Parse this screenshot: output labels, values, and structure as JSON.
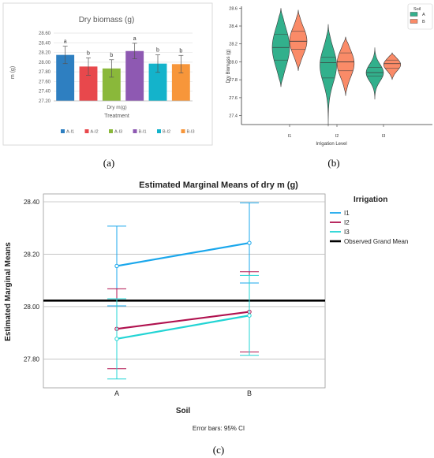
{
  "panels": [
    {
      "label": "(a)",
      "chart_data": {
        "type": "bar",
        "title": "Dry biomass (g)",
        "categories": [
          "A-I1",
          "A-I2",
          "A-I3",
          "B-I1",
          "B-I2",
          "B-I3"
        ],
        "values": [
          28.15,
          27.91,
          27.87,
          28.23,
          27.97,
          27.96
        ],
        "errors": [
          0.18,
          0.18,
          0.18,
          0.16,
          0.18,
          0.18
        ],
        "letters": [
          "a",
          "b",
          "b",
          "a",
          "b",
          "b"
        ],
        "colors": [
          "#2e7fc1",
          "#e8484c",
          "#8ab83a",
          "#8e59b2",
          "#14b3cb",
          "#f7963a"
        ],
        "ylabel": "m (g)",
        "xlabel_inner": "Dry m(g)",
        "xlabel": "Treatment",
        "ylim": [
          27.2,
          28.6
        ],
        "yticks": [
          "27.20",
          "27.40",
          "27.60",
          "27.80",
          "28.00",
          "28.20",
          "28.40",
          "28.60"
        ],
        "grid": true,
        "legend": "bottom"
      }
    },
    {
      "label": "(b)",
      "chart_data": {
        "type": "violin",
        "categories": [
          "I1",
          "I2",
          "I3"
        ],
        "xlabel": "Irrigation Level",
        "ylabel": "Dry Biomass (g)",
        "ylim": [
          27.3,
          28.62
        ],
        "yticks": [
          "27.4",
          "27.6",
          "27.8",
          "28.0",
          "28.2",
          "28.4",
          "28.6"
        ],
        "legend_title": "Soil",
        "series": [
          {
            "name": "A",
            "color": "#32b08c",
            "violins": [
              {
                "min": 27.72,
                "max": 28.6,
                "q1": 28.02,
                "median": 28.16,
                "q3": 28.31
              },
              {
                "min": 27.28,
                "max": 28.42,
                "q1": 27.82,
                "median": 27.99,
                "q3": 28.05
              },
              {
                "min": 27.58,
                "max": 28.16,
                "q1": 27.84,
                "median": 27.88,
                "q3": 27.94
              }
            ]
          },
          {
            "name": "B",
            "color": "#fa8b68",
            "violins": [
              {
                "min": 27.9,
                "max": 28.58,
                "q1": 28.14,
                "median": 28.23,
                "q3": 28.34
              },
              {
                "min": 27.62,
                "max": 28.28,
                "q1": 27.9,
                "median": 28.0,
                "q3": 28.1
              },
              {
                "min": 27.8,
                "max": 28.1,
                "q1": 27.93,
                "median": 27.98,
                "q3": 28.02
              }
            ]
          }
        ],
        "legend": "top-right"
      }
    },
    {
      "label": "(c)",
      "chart_data": {
        "type": "line",
        "title": "Estimated Marginal Means of dry m (g)",
        "categories": [
          "A",
          "B"
        ],
        "xlabel": "Soil",
        "ylabel": "Estimated Marginal Means",
        "ylim": [
          27.69,
          28.43
        ],
        "yticks": [
          "27.80",
          "28.00",
          "28.20",
          "28.40"
        ],
        "grid": true,
        "legend_title": "Irrigation",
        "series": [
          {
            "name": "I1",
            "color": "#1aa7ec",
            "values": [
              28.155,
              28.243
            ],
            "ci_low": [
              28.003,
              28.09
            ],
            "ci_high": [
              28.307,
              28.396
            ]
          },
          {
            "name": "I2",
            "color": "#b0124f",
            "values": [
              27.915,
              27.98
            ],
            "ci_low": [
              27.763,
              27.827
            ],
            "ci_high": [
              28.068,
              28.133
            ]
          },
          {
            "name": "I3",
            "color": "#22d4d4",
            "values": [
              27.877,
              27.966
            ],
            "ci_low": [
              27.724,
              27.814
            ],
            "ci_high": [
              28.03,
              28.119
            ]
          }
        ],
        "reference_line": {
          "name": "Observed Grand Mean",
          "value": 28.023,
          "color": "#000000"
        },
        "footnote": "Error bars: 95% CI",
        "legend": "right"
      }
    }
  ]
}
